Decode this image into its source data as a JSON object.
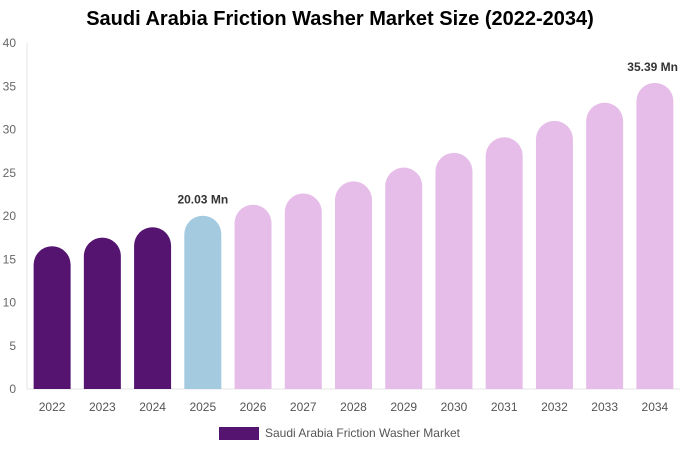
{
  "chart_data": {
    "type": "bar",
    "title": "Saudi Arabia Friction Washer Market Size (2022-2034)",
    "xlabel": "",
    "ylabel": "",
    "categories": [
      "2022",
      "2023",
      "2024",
      "2025",
      "2026",
      "2027",
      "2028",
      "2029",
      "2030",
      "2031",
      "2032",
      "2033",
      "2034"
    ],
    "series": [
      {
        "name": "Saudi Arabia Friction Washer Market",
        "values": [
          16.5,
          17.5,
          18.7,
          20.03,
          21.3,
          22.6,
          24.0,
          25.6,
          27.3,
          29.1,
          31.0,
          33.1,
          35.39
        ]
      }
    ],
    "ylim": [
      0,
      40
    ],
    "yticks": [
      0,
      5,
      10,
      15,
      20,
      25,
      30,
      35,
      40
    ],
    "data_labels": [
      {
        "index": 3,
        "text": "20.03 Mn"
      },
      {
        "index": 12,
        "text": "35.39 Mn"
      }
    ],
    "bar_colors": {
      "historical": "#541470",
      "current": "#a4cadf",
      "forecast": "#e6bde9"
    },
    "grid": false,
    "legend_position": "bottom"
  }
}
